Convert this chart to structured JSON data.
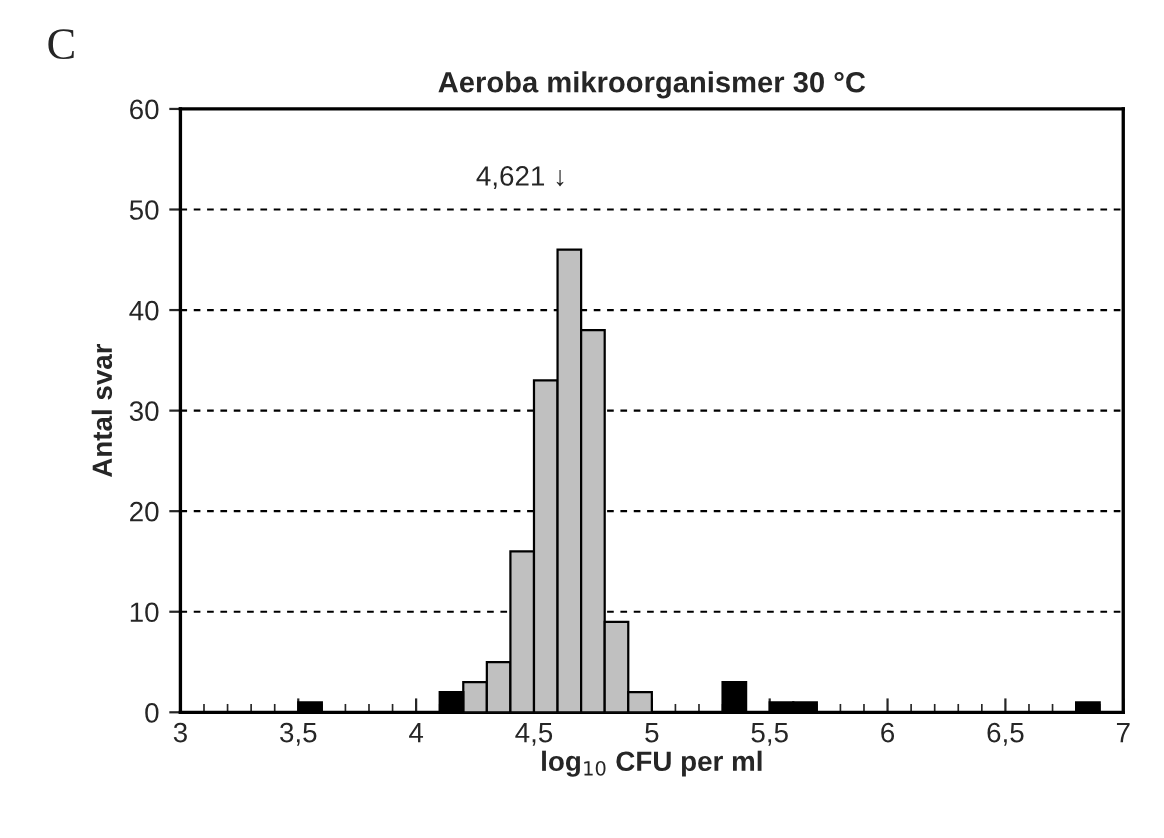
{
  "chart_data": {
    "type": "histogram",
    "title": "Aeroba mikroorganismer 30 °C",
    "xlabel": "log$_{10}$ CFU per ml",
    "ylabel": "Antal svar",
    "bins": [
      3.0,
      3.1,
      3.2,
      3.3,
      3.4,
      3.5,
      3.6,
      3.7,
      3.8,
      3.9,
      4.0,
      4.1,
      4.2,
      4.3,
      4.4,
      4.5,
      4.6,
      4.7,
      4.8,
      4.9,
      5.0,
      5.1,
      5.2,
      5.3,
      5.4,
      5.5,
      5.6,
      5.7,
      5.8,
      5.9,
      6.0,
      6.1,
      6.2,
      6.3,
      6.4,
      6.5,
      6.6,
      6.7,
      6.8,
      6.9,
      7.0
    ],
    "series": [
      {
        "color": "#c0c0c0",
        "values": [
          null,
          null,
          null,
          null,
          null,
          null,
          null,
          null,
          null,
          null,
          null,
          null,
          3,
          5,
          16,
          33,
          46,
          38,
          9,
          2,
          null,
          null,
          null,
          null,
          null,
          null,
          null,
          null,
          null,
          null,
          null,
          null,
          null,
          null,
          null,
          null,
          null,
          null,
          null,
          null
        ]
      },
      {
        "color": "#000000",
        "values": [
          null,
          null,
          null,
          null,
          null,
          1,
          null,
          null,
          null,
          null,
          null,
          2,
          null,
          null,
          null,
          null,
          null,
          null,
          null,
          null,
          null,
          null,
          null,
          3,
          null,
          1,
          1,
          null,
          null,
          null,
          null,
          null,
          null,
          null,
          null,
          null,
          null,
          null,
          1,
          null
        ]
      }
    ],
    "xlim": [
      3,
      7
    ],
    "xticks": [
      3,
      {
        "value": 3.5,
        "label": "3,5"
      },
      4,
      {
        "value": 4.5,
        "label": "4,5"
      },
      5,
      {
        "value": 5.5,
        "label": "5,5"
      },
      6,
      {
        "value": 6.5,
        "label": "6,5"
      },
      7
    ],
    "ylim": [
      0,
      60
    ],
    "yticks": [
      0,
      10,
      20,
      30,
      40,
      50,
      60
    ],
    "grid": "y",
    "legend": false,
    "annotations": [
      "C",
      "4,621 ↓"
    ]
  }
}
